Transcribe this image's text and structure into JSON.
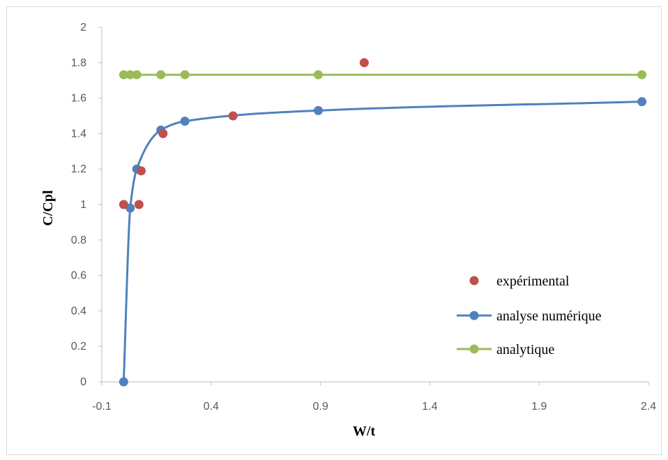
{
  "chart_data": {
    "type": "scatter",
    "title": "",
    "xlabel": "W/t",
    "ylabel": "C/Cpl",
    "xlim": [
      -0.1,
      2.4
    ],
    "ylim": [
      0,
      2
    ],
    "xticks": [
      "-0.1",
      "0.4",
      "0.9",
      "1.4",
      "1.9",
      "2.4"
    ],
    "yticks": [
      "0",
      "0.2",
      "0.4",
      "0.6",
      "0.8",
      "1",
      "1.2",
      "1.4",
      "1.6",
      "1.8",
      "2"
    ],
    "grid": false,
    "legend_position": "right",
    "series": [
      {
        "name": "expérimental",
        "style": "markers",
        "color": "#c0504d",
        "x": [
          0.0,
          0.07,
          0.08,
          0.18,
          0.5,
          1.1
        ],
        "y": [
          1.0,
          1.0,
          1.19,
          1.4,
          1.5,
          1.8
        ]
      },
      {
        "name": "analyse numérique",
        "style": "smooth-line-markers",
        "color": "#4f81bd",
        "x": [
          0.0,
          0.03,
          0.06,
          0.17,
          0.28,
          0.89,
          2.37
        ],
        "y": [
          0.0,
          0.98,
          1.2,
          1.42,
          1.47,
          1.53,
          1.58
        ]
      },
      {
        "name": "analytique",
        "style": "line-markers",
        "color": "#9bbb59",
        "x": [
          0.0,
          0.03,
          0.06,
          0.17,
          0.28,
          0.89,
          2.37
        ],
        "y": [
          1.732,
          1.732,
          1.732,
          1.732,
          1.732,
          1.732,
          1.732
        ]
      }
    ]
  }
}
